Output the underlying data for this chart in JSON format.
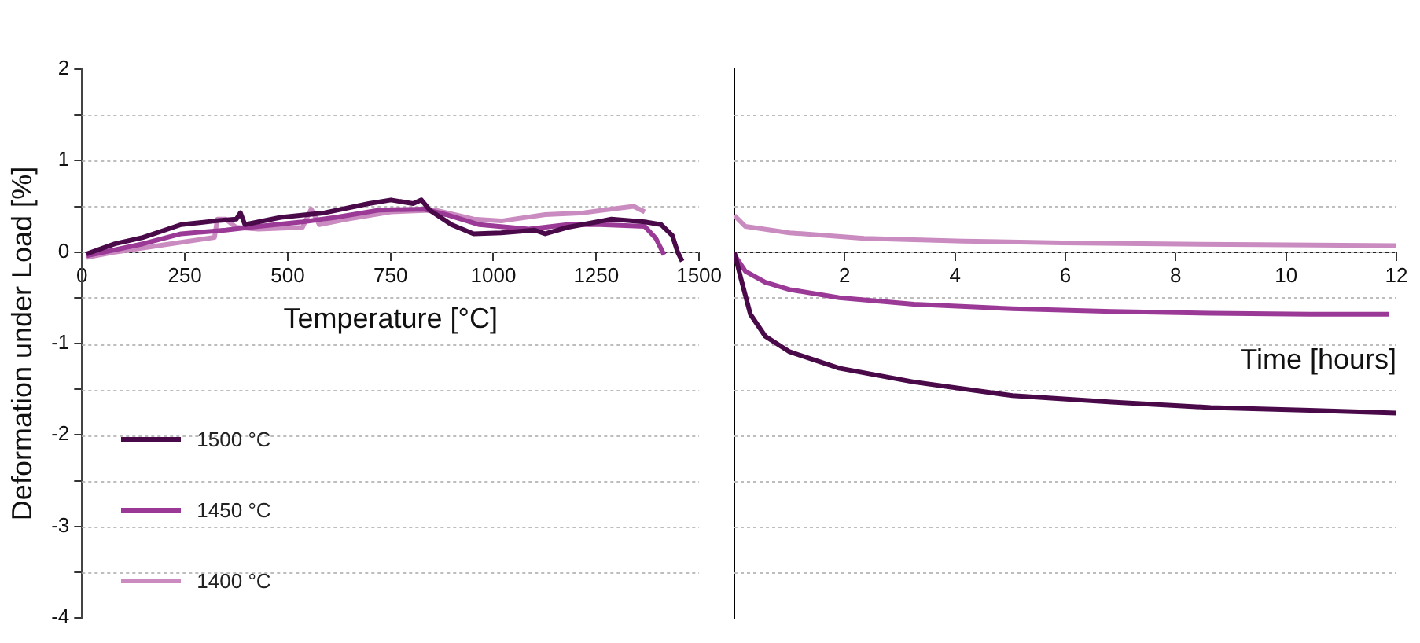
{
  "chart_data": [
    {
      "type": "line",
      "xlabel": "Temperature [°C]",
      "ylabel": "Deformation under Load [%]",
      "xlim": [
        0,
        1500
      ],
      "xticks": [
        0,
        250,
        500,
        750,
        1000,
        1250,
        1500
      ],
      "ylim": [
        -4,
        2
      ],
      "yticks": [
        -4,
        {
          "value": -3.5,
          "label": null
        },
        -3,
        {
          "value": -2.5,
          "label": null
        },
        -2,
        {
          "value": -1.5,
          "label": null
        },
        -1,
        {
          "value": -0.5,
          "label": null
        },
        0,
        {
          "value": 0.5,
          "label": null
        },
        1,
        {
          "value": 1.5,
          "label": null
        },
        2
      ],
      "grid": "y",
      "legend": "bottom left",
      "series": [
        {
          "name": "1500 °C",
          "color": "#4a0a4a",
          "x": [
            11,
            80,
            148,
            241,
            322,
            375,
            385,
            396,
            483,
            590,
            697,
            751,
            805,
            825,
            845,
            898,
            952,
            1019,
            1100,
            1126,
            1180,
            1287,
            1368,
            1408,
            1435,
            1448,
            1459
          ],
          "values": [
            -0.02,
            0.09,
            0.16,
            0.3,
            0.34,
            0.36,
            0.43,
            0.3,
            0.38,
            0.43,
            0.53,
            0.57,
            0.53,
            0.57,
            0.46,
            0.3,
            0.2,
            0.21,
            0.24,
            0.2,
            0.27,
            0.36,
            0.33,
            0.3,
            0.18,
            0,
            -0.1
          ]
        },
        {
          "name": "1450 °C",
          "color": "#9b3a96",
          "x": [
            11,
            148,
            241,
            349,
            429,
            536,
            617,
            724,
            831,
            885,
            966,
            1086,
            1180,
            1260,
            1368,
            1395,
            1415
          ],
          "values": [
            -0.04,
            0.09,
            0.2,
            0.24,
            0.28,
            0.33,
            0.38,
            0.46,
            0.47,
            0.41,
            0.3,
            0.25,
            0.3,
            0.3,
            0.28,
            0.15,
            -0.03
          ]
        },
        {
          "name": "1400 °C",
          "color": "#c98bc0",
          "x": [
            11,
            80,
            215,
            322,
            329,
            349,
            375,
            429,
            536,
            557,
            577,
            644,
            751,
            858,
            952,
            1019,
            1126,
            1220,
            1287,
            1341,
            1368
          ],
          "values": [
            -0.06,
            0,
            0.09,
            0.16,
            0.36,
            0.36,
            0.27,
            0.25,
            0.27,
            0.47,
            0.3,
            0.36,
            0.44,
            0.46,
            0.36,
            0.34,
            0.41,
            0.43,
            0.47,
            0.5,
            0.44
          ]
        }
      ]
    },
    {
      "type": "line",
      "xlabel": "Time [hours]",
      "xlim": [
        0,
        12
      ],
      "xticks": [
        {
          "value": 0,
          "label": null
        },
        2,
        4,
        6,
        8,
        10,
        12
      ],
      "ylim": [
        -4,
        2
      ],
      "yticks": [
        -4,
        {
          "value": -3.5,
          "label": null
        },
        -3,
        {
          "value": -2.5,
          "label": null
        },
        -2,
        {
          "value": -1.5,
          "label": null
        },
        -1,
        {
          "value": -0.5,
          "label": null
        },
        0,
        {
          "value": 0.5,
          "label": null
        },
        1,
        {
          "value": 1.5,
          "label": null
        },
        2
      ],
      "grid": "y",
      "tick_labels": "x",
      "series": [
        {
          "color": "#4a0a4a",
          "x": [
            0,
            0.11,
            0.29,
            0.56,
            1,
            1.9,
            3.25,
            5.04,
            6.84,
            8.63,
            10.43,
            12
          ],
          "values": [
            0,
            -0.27,
            -0.68,
            -0.92,
            -1.09,
            -1.27,
            -1.42,
            -1.57,
            -1.64,
            -1.7,
            -1.73,
            -1.76
          ]
        },
        {
          "color": "#9b3a96",
          "x": [
            0,
            0.2,
            0.56,
            1,
            1.9,
            3.25,
            5.04,
            6.84,
            8.63,
            10.43,
            11.86
          ],
          "values": [
            -0.03,
            -0.21,
            -0.33,
            -0.41,
            -0.5,
            -0.57,
            -0.62,
            -0.65,
            -0.67,
            -0.68,
            -0.68
          ]
        },
        {
          "color": "#c98bc0",
          "x": [
            0,
            0.2,
            1,
            2.35,
            4.15,
            5.94,
            7.74,
            9.53,
            12
          ],
          "values": [
            0.4,
            0.28,
            0.21,
            0.15,
            0.12,
            0.1,
            0.09,
            0.08,
            0.07
          ]
        }
      ]
    }
  ]
}
